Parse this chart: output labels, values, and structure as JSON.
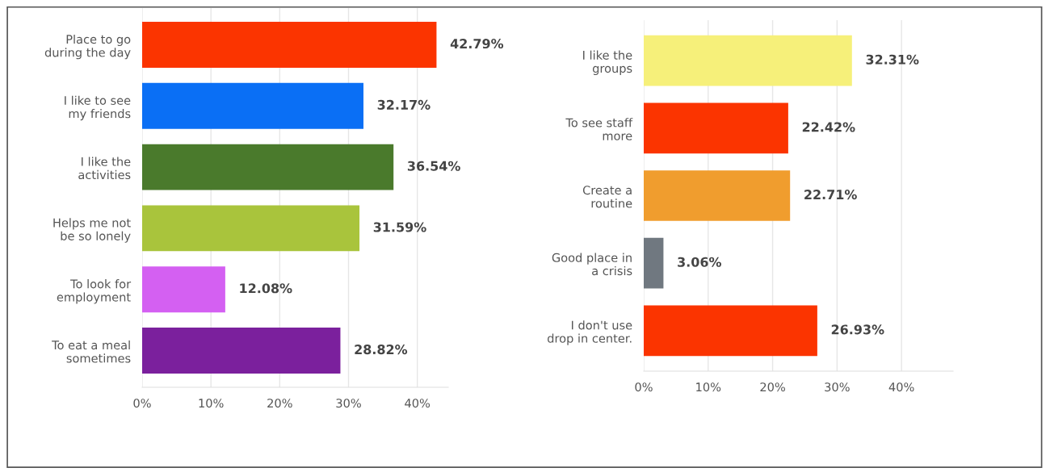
{
  "chart_data": [
    {
      "type": "bar",
      "orientation": "horizontal",
      "categories": [
        "Place to go\nduring the day",
        "I like to see\nmy friends",
        "I like the\nactivities",
        "Helps me not\nbe so lonely",
        "To look for\nemployment",
        "To eat a meal\nsometimes"
      ],
      "values": [
        42.79,
        32.17,
        36.54,
        31.59,
        12.08,
        28.82
      ],
      "colors": [
        "#fb3400",
        "#0a6ff5",
        "#4a7a2c",
        "#a9c43c",
        "#d460f2",
        "#7b209d"
      ],
      "value_labels": [
        "42.79%",
        "32.17%",
        "36.54%",
        "31.59%",
        "12.08%",
        "28.82%"
      ],
      "xlim": [
        0,
        44.5
      ],
      "xticks": [
        {
          "value": 0,
          "label": "0%"
        },
        {
          "value": 10,
          "label": "10%"
        },
        {
          "value": 20,
          "label": "20%"
        },
        {
          "value": 30,
          "label": "30%"
        },
        {
          "value": 40,
          "label": "40%"
        }
      ],
      "grid": "x"
    },
    {
      "type": "bar",
      "orientation": "horizontal",
      "categories": [
        "I like the\ngroups",
        "To see staff\nmore",
        "Create a\nroutine",
        "Good place in\na crisis",
        "I don't use\ndrop in center."
      ],
      "values": [
        32.31,
        22.42,
        22.71,
        3.06,
        26.93
      ],
      "colors": [
        "#f6f07a",
        "#fb3400",
        "#f09d2e",
        "#707880",
        "#fb3400"
      ],
      "value_labels": [
        "32.31%",
        "22.42%",
        "22.71%",
        "3.06%",
        "26.93%"
      ],
      "xlim": [
        0,
        48
      ],
      "xticks": [
        {
          "value": 0,
          "label": "0%"
        },
        {
          "value": 10,
          "label": "10%"
        },
        {
          "value": 20,
          "label": "20%"
        },
        {
          "value": 30,
          "label": "30%"
        },
        {
          "value": 40,
          "label": "40%"
        }
      ],
      "grid": "x"
    }
  ]
}
